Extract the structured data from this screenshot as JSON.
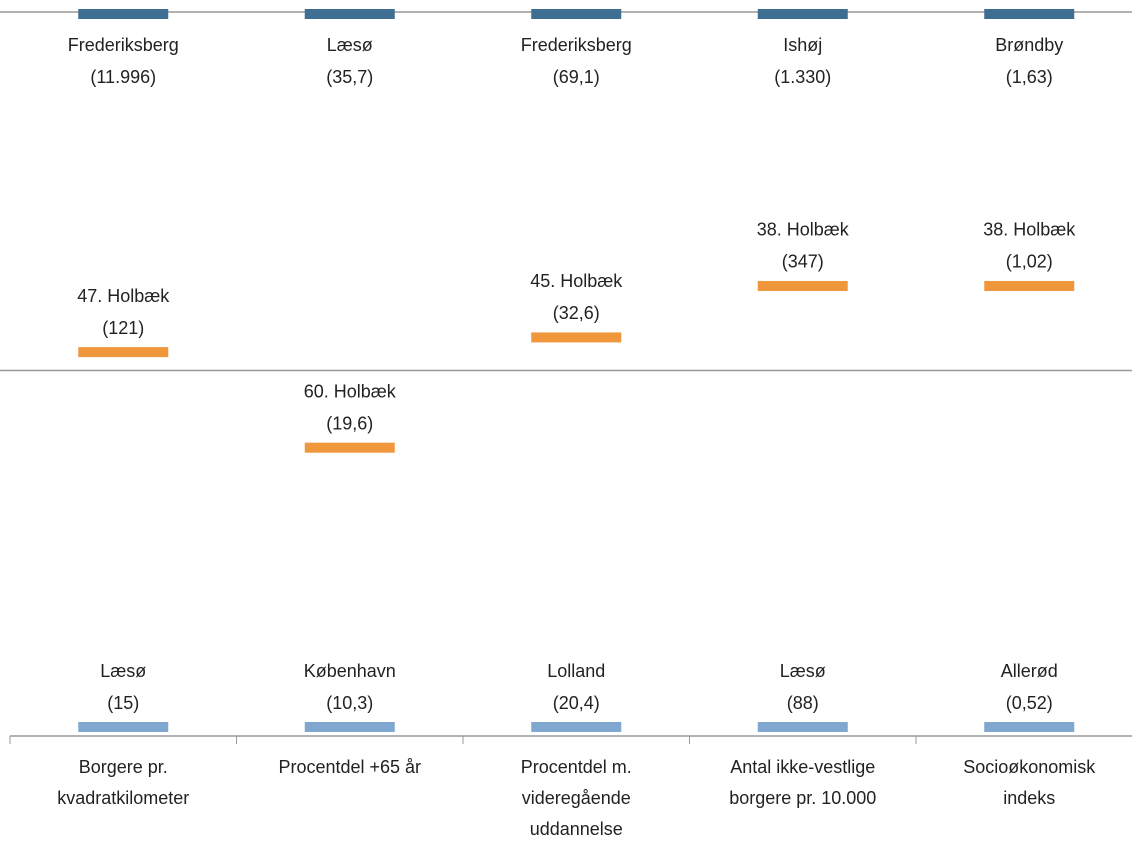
{
  "chart_data": {
    "type": "rank",
    "categories": [
      [
        "Borgere pr.",
        "kvadratkilometer"
      ],
      [
        "Procentdel +65 år"
      ],
      [
        "Procentdel m.",
        "videregående",
        "uddannelse"
      ],
      [
        "Antal ikke-vestlige",
        "borgere pr. 10.000"
      ],
      [
        "Socioøkonomisk",
        "indeks"
      ]
    ],
    "ylim": [
      1,
      98
    ],
    "reference_line": 49.5,
    "series": [
      {
        "role": "top",
        "color": "#3f6e93",
        "values": [
          1,
          1,
          1,
          1,
          1
        ],
        "names": [
          "Frederiksberg",
          "Læsø",
          "Frederiksberg",
          "Ishøj",
          "Brøndby"
        ],
        "amount_labels": [
          "(11.996)",
          "(35,7)",
          "(69,1)",
          "(1.330)",
          "(1,63)"
        ]
      },
      {
        "role": "focus",
        "color": "#f0963b",
        "values": [
          47,
          60,
          45,
          38,
          38
        ],
        "value_labels": [
          "47. Holbæk",
          "60. Holbæk",
          "45. Holbæk",
          "38. Holbæk",
          "38. Holbæk"
        ],
        "amount_labels": [
          "(121)",
          "(19,6)",
          "(32,6)",
          "(347)",
          "(1,02)"
        ]
      },
      {
        "role": "bottom",
        "color": "#7fa7d0",
        "values": [
          98,
          98,
          98,
          98,
          98
        ],
        "names": [
          "Læsø",
          "København",
          "Lolland",
          "Læsø",
          "Allerød"
        ],
        "amount_labels": [
          "(15)",
          "(10,3)",
          "(20,4)",
          "(88)",
          "(0,52)"
        ]
      }
    ]
  }
}
